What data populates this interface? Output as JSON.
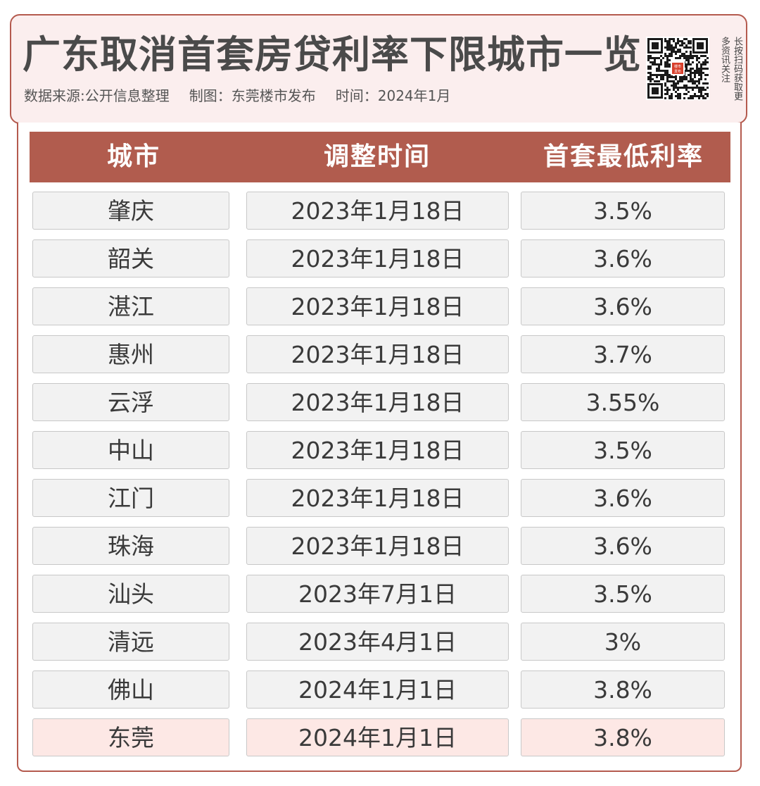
{
  "header": {
    "title": "广东取消首套房贷利率下限城市一览",
    "source": "数据来源:公开信息整理",
    "made_by": "制图：东莞楼市发布",
    "date": "时间：2024年1月",
    "qr_caption": "长按扫码获取更多资讯关注",
    "qr_logo_text": "楼市发布"
  },
  "colors": {
    "header_accent": "#b15c4e",
    "cell_background": "#f2f2f2",
    "highlight_background": "#fde8e5"
  },
  "chart_data": {
    "type": "table",
    "columns": [
      "城市",
      "调整时间",
      "首套最低利率"
    ],
    "rows": [
      [
        "肇庆",
        "2023年1月18日",
        "3.5%"
      ],
      [
        "韶关",
        "2023年1月18日",
        "3.6%"
      ],
      [
        "湛江",
        "2023年1月18日",
        "3.6%"
      ],
      [
        "惠州",
        "2023年1月18日",
        "3.7%"
      ],
      [
        "云浮",
        "2023年1月18日",
        "3.55%"
      ],
      [
        "中山",
        "2023年1月18日",
        "3.5%"
      ],
      [
        "江门",
        "2023年1月18日",
        "3.6%"
      ],
      [
        "珠海",
        "2023年1月18日",
        "3.6%"
      ],
      [
        "汕头",
        "2023年7月1日",
        "3.5%"
      ],
      [
        "清远",
        "2023年4月1日",
        "3%"
      ],
      [
        "佛山",
        "2024年1月1日",
        "3.8%"
      ],
      [
        "东莞",
        "2024年1月1日",
        "3.8%"
      ]
    ],
    "highlighted_row": 11
  }
}
